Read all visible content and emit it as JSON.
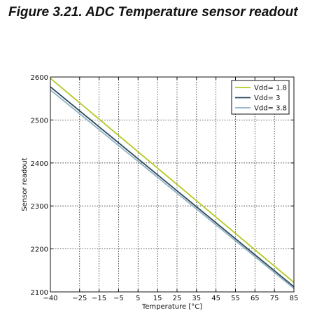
{
  "figure": {
    "title": "Figure 3.21.  ADC Temperature sensor readout"
  },
  "chart_data": {
    "type": "line",
    "title": "Figure 3.21.  ADC Temperature sensor readout",
    "xlabel": "Temperature [°C]",
    "ylabel": "Sensor readout",
    "xlim": [
      -40,
      85
    ],
    "ylim": [
      2100,
      2600
    ],
    "xticks": [
      -40,
      -25,
      -15,
      -5,
      5,
      15,
      25,
      35,
      45,
      55,
      65,
      75,
      85
    ],
    "xtick_labels": [
      "−40",
      "−25",
      "−15",
      "−5",
      "5",
      "15",
      "25",
      "35",
      "45",
      "55",
      "65",
      "75",
      "85"
    ],
    "yticks": [
      2100,
      2200,
      2300,
      2400,
      2500,
      2600
    ],
    "yticks_labels": [
      "2100",
      "2200",
      "2300",
      "2400",
      "2500",
      "2600"
    ],
    "grid": true,
    "legend_position": "top-right",
    "series": [
      {
        "name": "Vdd= 1.8",
        "color": "#b5c825",
        "x": [
          -40,
          85
        ],
        "y": [
          2597,
          2122
        ]
      },
      {
        "name": "Vdd= 3",
        "color": "#2d4a5c",
        "x": [
          -40,
          85
        ],
        "y": [
          2577,
          2112
        ]
      },
      {
        "name": "Vdd= 3.8",
        "color": "#8fb1c4",
        "x": [
          -40,
          85
        ],
        "y": [
          2570,
          2108
        ]
      }
    ]
  }
}
